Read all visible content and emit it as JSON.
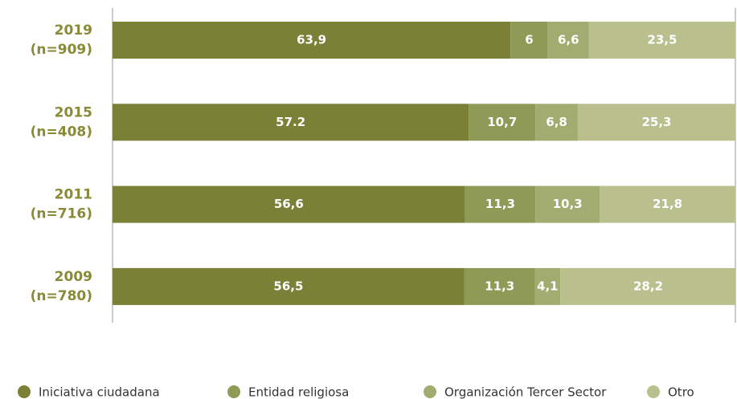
{
  "chart_data": {
    "type": "stacked-barh",
    "categories": [
      [
        "2019",
        "(n=909)"
      ],
      [
        "2015",
        "(n=408)"
      ],
      [
        "2011",
        "(n=716)"
      ],
      [
        "2009",
        "(n=780)"
      ]
    ],
    "xlim": [
      0,
      100
    ],
    "series": [
      {
        "name": "Iniciativa ciudadana",
        "color": "#7a8136",
        "values": [
          63.9,
          57.2,
          56.6,
          56.5
        ],
        "value_labels": [
          "63,9",
          "57.2",
          "56,6",
          "56,5"
        ]
      },
      {
        "name": "Entidad religiosa",
        "color": "#8e9a55",
        "values": [
          6,
          10.7,
          11.3,
          11.3
        ],
        "value_labels": [
          "6",
          "10,7",
          "11,3",
          "11,3"
        ]
      },
      {
        "name": "Organización Tercer Sector",
        "color": "#a3ac70",
        "values": [
          6.6,
          6.8,
          10.3,
          4.1
        ],
        "value_labels": [
          "6,6",
          "6,8",
          "10,3",
          "4,1"
        ]
      },
      {
        "name": "Otro",
        "color": "#b9c08e",
        "values": [
          23.5,
          25.3,
          21.8,
          28.2
        ],
        "value_labels": [
          "23,5",
          "25,3",
          "21,8",
          "28,2"
        ]
      }
    ]
  }
}
